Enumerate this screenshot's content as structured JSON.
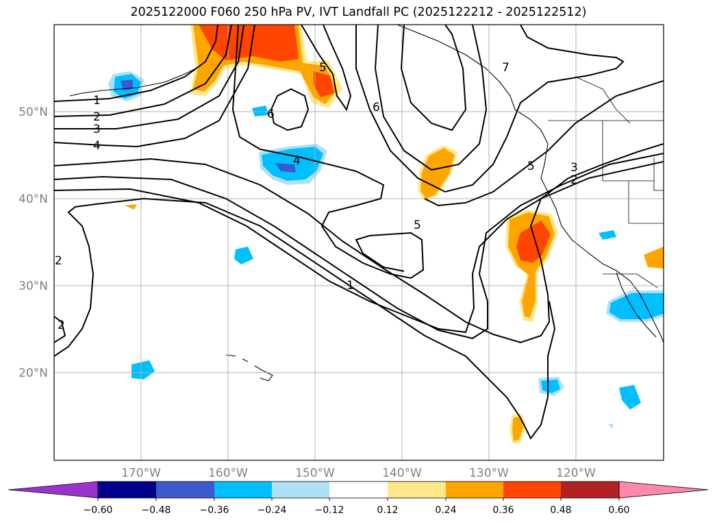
{
  "title": "2025122000 F060 250 hPa PV, IVT Landfall PC (2025122212 - 2025122512)",
  "lat_labels": [
    "50°N",
    "40°N",
    "30°N",
    "20°N"
  ],
  "lon_labels": [
    "170°W",
    "160°W",
    "150°W",
    "140°W",
    "130°W",
    "120°W"
  ],
  "contour_labels": [
    "1",
    "2",
    "3",
    "4",
    "4",
    "6",
    "6",
    "5",
    "7",
    "5",
    "5",
    "3",
    "2",
    "1",
    "2",
    "2"
  ],
  "colorbar": {
    "tick_labels": [
      "−0.60",
      "−0.48",
      "−0.36",
      "−0.24",
      "−0.12",
      "0.12",
      "0.24",
      "0.36",
      "0.48",
      "0.60"
    ],
    "colors": [
      "#9933cc",
      "#00008b",
      "#3b5bcc",
      "#00bfff",
      "#b0e0f8",
      "#ffffff",
      "#ffe88a",
      "#ffa500",
      "#ff4500",
      "#b22222",
      "#ff88aa"
    ]
  }
}
